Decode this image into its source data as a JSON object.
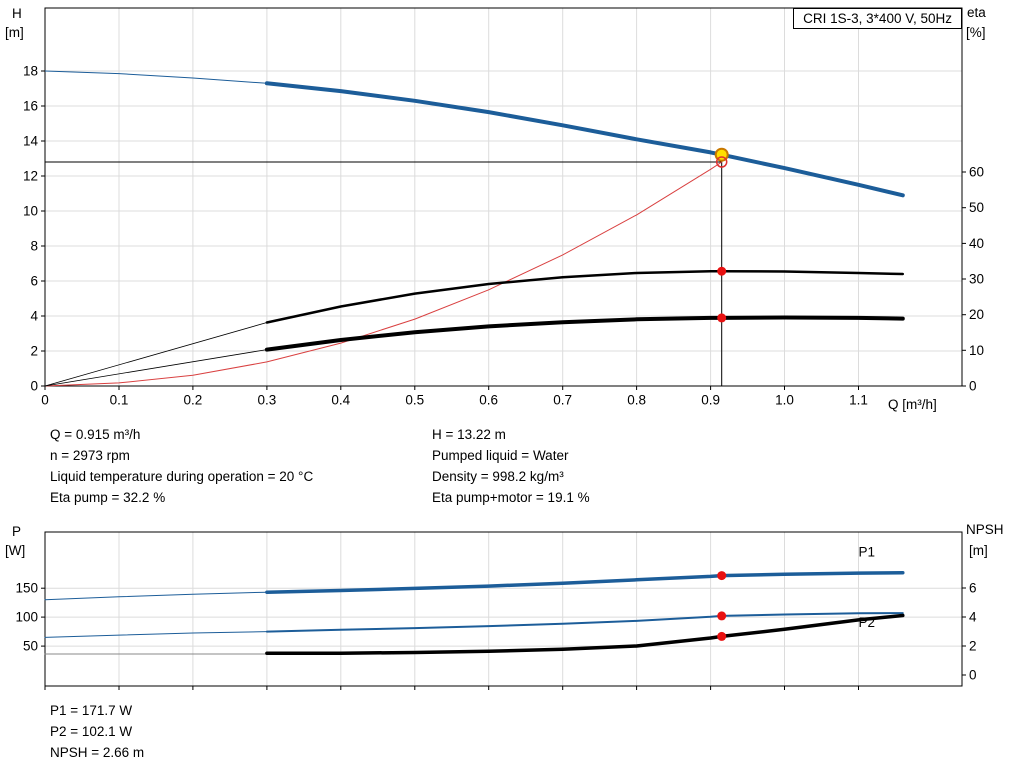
{
  "title_box": "CRI 1S-3, 3*400 V, 50Hz",
  "axis_labels": {
    "top_left_symbol": "H",
    "top_left_unit": "[m]",
    "top_right_symbol": "eta",
    "top_right_unit": "[%]",
    "x": "Q [m³/h]",
    "bottom_left_symbol": "P",
    "bottom_left_unit": "[W]",
    "bottom_right_symbol": "NPSH",
    "bottom_right_unit": "[m]"
  },
  "info": {
    "left": [
      "Q = 0.915 m³/h",
      "n = 2973 rpm",
      "Liquid temperature during operation = 20 °C",
      "Eta pump = 32.2 %"
    ],
    "right": [
      "H = 13.22 m",
      "Pumped liquid = Water",
      "Density = 998.2 kg/m³",
      "Eta pump+motor = 19.1 %"
    ]
  },
  "results": [
    "P1 = 171.7 W",
    "P2 = 102.1 W",
    "NPSH = 2.66 m"
  ],
  "colors": {
    "curve_blue": "#1c5d99",
    "curve_black": "#000000",
    "system_red": "#d94040",
    "dot_red": "#e81111",
    "duty_fill": "#ffdf00",
    "duty_stroke": "#c87800",
    "grid": "#dcdcdc"
  },
  "chart_data": [
    {
      "name": "hq-eta-chart",
      "type": "line",
      "title": "CRI 1S-3, 3*400 V, 50Hz",
      "xlabel": "Q [m³/h]",
      "ylabel_left": "H [m]",
      "ylabel_right": "eta [%]",
      "xlim": [
        0,
        1.24
      ],
      "show_x_labels": true,
      "x_ticks": [
        {
          "v": 0,
          "t": "0"
        },
        {
          "v": 0.1,
          "t": "0.1"
        },
        {
          "v": 0.2,
          "t": "0.2"
        },
        {
          "v": 0.3,
          "t": "0.3"
        },
        {
          "v": 0.4,
          "t": "0.4"
        },
        {
          "v": 0.5,
          "t": "0.5"
        },
        {
          "v": 0.6,
          "t": "0.6"
        },
        {
          "v": 0.7,
          "t": "0.7"
        },
        {
          "v": 0.8,
          "t": "0.8"
        },
        {
          "v": 0.9,
          "t": "0.9"
        },
        {
          "v": 1.0,
          "t": "1.0"
        },
        {
          "v": 1.1,
          "t": "1.1"
        }
      ],
      "ylim_left": [
        0,
        21.6
      ],
      "yticks_left": [
        {
          "v": 0,
          "t": "0"
        },
        {
          "v": 2,
          "t": "2"
        },
        {
          "v": 4,
          "t": "4"
        },
        {
          "v": 6,
          "t": "6"
        },
        {
          "v": 8,
          "t": "8"
        },
        {
          "v": 10,
          "t": "10"
        },
        {
          "v": 12,
          "t": "12"
        },
        {
          "v": 14,
          "t": "14"
        },
        {
          "v": 16,
          "t": "16"
        },
        {
          "v": 18,
          "t": "18"
        }
      ],
      "ylim_right": [
        0,
        106
      ],
      "yticks_right": [
        {
          "v": 0,
          "t": "0"
        },
        {
          "v": 10,
          "t": "10"
        },
        {
          "v": 20,
          "t": "20"
        },
        {
          "v": 30,
          "t": "30"
        },
        {
          "v": 40,
          "t": "40"
        },
        {
          "v": 50,
          "t": "50"
        },
        {
          "v": 60,
          "t": "60"
        }
      ],
      "crosshair": {
        "q": 0.915,
        "point_h": 13.22,
        "line_h": 12.8
      },
      "series": [
        {
          "name": "head-curve-extension",
          "axis": "left",
          "color": "#1c5d99",
          "width": 1,
          "points": [
            [
              0,
              18
            ],
            [
              0.1,
              17.85
            ],
            [
              0.2,
              17.6
            ],
            [
              0.3,
              17.3
            ]
          ]
        },
        {
          "name": "head-curve",
          "axis": "left",
          "color": "#1c5d99",
          "width": 4,
          "points": [
            [
              0.3,
              17.3
            ],
            [
              0.4,
              16.85
            ],
            [
              0.5,
              16.3
            ],
            [
              0.6,
              15.65
            ],
            [
              0.7,
              14.9
            ],
            [
              0.8,
              14.1
            ],
            [
              0.9,
              13.35
            ],
            [
              0.915,
              13.22
            ],
            [
              1.0,
              12.45
            ],
            [
              1.1,
              11.5
            ],
            [
              1.16,
              10.9
            ]
          ]
        },
        {
          "name": "system-curve",
          "axis": "left",
          "color": "#d94040",
          "width": 1,
          "points": [
            [
              0,
              0
            ],
            [
              0.1,
              0.18
            ],
            [
              0.2,
              0.61
            ],
            [
              0.3,
              1.38
            ],
            [
              0.4,
              2.45
            ],
            [
              0.5,
              3.82
            ],
            [
              0.6,
              5.5
            ],
            [
              0.7,
              7.49
            ],
            [
              0.8,
              9.78
            ],
            [
              0.9,
              12.38
            ],
            [
              0.915,
              12.8
            ]
          ]
        },
        {
          "name": "eta-pump-extension",
          "axis": "right",
          "color": "#000000",
          "width": 0.8,
          "points": [
            [
              0,
              0
            ],
            [
              0.3,
              17.8
            ]
          ]
        },
        {
          "name": "eta-pump-curve",
          "axis": "right",
          "color": "#000000",
          "width": 2.5,
          "points": [
            [
              0.3,
              17.8
            ],
            [
              0.4,
              22.3
            ],
            [
              0.5,
              25.9
            ],
            [
              0.6,
              28.6
            ],
            [
              0.7,
              30.5
            ],
            [
              0.8,
              31.7
            ],
            [
              0.9,
              32.2
            ],
            [
              0.915,
              32.2
            ],
            [
              1.0,
              32.1
            ],
            [
              1.1,
              31.7
            ],
            [
              1.16,
              31.4
            ]
          ]
        },
        {
          "name": "eta-pump-motor-extension",
          "axis": "right",
          "color": "#000000",
          "width": 0.8,
          "points": [
            [
              0,
              0
            ],
            [
              0.3,
              10.2
            ]
          ]
        },
        {
          "name": "eta-pump-motor-curve",
          "axis": "right",
          "color": "#000000",
          "width": 4,
          "points": [
            [
              0.3,
              10.2
            ],
            [
              0.4,
              12.9
            ],
            [
              0.5,
              15.1
            ],
            [
              0.6,
              16.7
            ],
            [
              0.7,
              17.9
            ],
            [
              0.8,
              18.7
            ],
            [
              0.9,
              19.1
            ],
            [
              0.915,
              19.1
            ],
            [
              1.0,
              19.2
            ],
            [
              1.1,
              19.1
            ],
            [
              1.16,
              18.9
            ]
          ]
        }
      ],
      "markers": [
        {
          "name": "duty-point",
          "q": 0.915,
          "val": 13.22,
          "axis": "left",
          "type": "duty",
          "fill": "#ffdf00",
          "stroke": "#c87800"
        },
        {
          "name": "requested-duty-point",
          "q": 0.915,
          "val": 12.8,
          "axis": "left",
          "type": "open",
          "stroke": "#e03030"
        },
        {
          "name": "eta-pump-point",
          "q": 0.915,
          "val": 32.2,
          "axis": "right",
          "type": "dot",
          "fill": "#e81111"
        },
        {
          "name": "eta-pump-motor-point",
          "q": 0.915,
          "val": 19.1,
          "axis": "right",
          "type": "dot",
          "fill": "#e81111"
        }
      ],
      "labels": []
    },
    {
      "name": "power-npsh-chart",
      "type": "line",
      "title": "",
      "xlabel": "",
      "ylabel_left": "P [W]",
      "ylabel_right": "NPSH [m]",
      "xlim": [
        0,
        1.24
      ],
      "show_x_labels": false,
      "x_ticks": [
        {
          "v": 0,
          "t": "0"
        },
        {
          "v": 0.1,
          "t": "0.1"
        },
        {
          "v": 0.2,
          "t": "0.2"
        },
        {
          "v": 0.3,
          "t": "0.3"
        },
        {
          "v": 0.4,
          "t": "0.4"
        },
        {
          "v": 0.5,
          "t": "0.5"
        },
        {
          "v": 0.6,
          "t": "0.6"
        },
        {
          "v": 0.7,
          "t": "0.7"
        },
        {
          "v": 0.8,
          "t": "0.8"
        },
        {
          "v": 0.9,
          "t": "0.9"
        },
        {
          "v": 1.0,
          "t": "1.0"
        },
        {
          "v": 1.1,
          "t": "1.1"
        }
      ],
      "ylim_left": [
        -19,
        247
      ],
      "yticks_left": [
        {
          "v": 50,
          "t": "50"
        },
        {
          "v": 100,
          "t": "100"
        },
        {
          "v": 150,
          "t": "150"
        }
      ],
      "ylim_right": [
        -0.76,
        9.86
      ],
      "yticks_right": [
        {
          "v": 0,
          "t": "0"
        },
        {
          "v": 2,
          "t": "2"
        },
        {
          "v": 4,
          "t": "4"
        },
        {
          "v": 6,
          "t": "6"
        }
      ],
      "crosshair": null,
      "series": [
        {
          "name": "p1-extension",
          "axis": "left",
          "color": "#1c5d99",
          "width": 1,
          "points": [
            [
              0,
              130
            ],
            [
              0.1,
              135
            ],
            [
              0.2,
              139.5
            ],
            [
              0.3,
              143
            ]
          ]
        },
        {
          "name": "p1-curve",
          "axis": "left",
          "color": "#1c5d99",
          "width": 3.5,
          "points": [
            [
              0.3,
              143
            ],
            [
              0.4,
              146
            ],
            [
              0.5,
              149.5
            ],
            [
              0.6,
              153.5
            ],
            [
              0.7,
              158.5
            ],
            [
              0.8,
              164.5
            ],
            [
              0.9,
              170.3
            ],
            [
              0.915,
              171.7
            ],
            [
              1.0,
              174
            ],
            [
              1.1,
              176
            ],
            [
              1.16,
              176.5
            ]
          ]
        },
        {
          "name": "p2-extension",
          "axis": "left",
          "color": "#1c5d99",
          "width": 1,
          "points": [
            [
              0,
              65
            ],
            [
              0.1,
              69
            ],
            [
              0.2,
              72.5
            ],
            [
              0.3,
              75
            ]
          ]
        },
        {
          "name": "p2-curve",
          "axis": "left",
          "color": "#1c5d99",
          "width": 2,
          "points": [
            [
              0.3,
              75
            ],
            [
              0.4,
              78
            ],
            [
              0.5,
              81
            ],
            [
              0.6,
              84.5
            ],
            [
              0.7,
              88.5
            ],
            [
              0.8,
              93.5
            ],
            [
              0.9,
              100.5
            ],
            [
              0.915,
              102.1
            ],
            [
              1.0,
              104.5
            ],
            [
              1.1,
              106.5
            ],
            [
              1.16,
              107
            ]
          ]
        },
        {
          "name": "npsh-extension",
          "axis": "right",
          "color": "#888888",
          "width": 1,
          "points": [
            [
              0,
              1.45
            ],
            [
              0.3,
              1.45
            ]
          ]
        },
        {
          "name": "npsh-curve",
          "axis": "right",
          "color": "#000000",
          "width": 3.5,
          "points": [
            [
              0.3,
              1.5
            ],
            [
              0.4,
              1.5
            ],
            [
              0.5,
              1.55
            ],
            [
              0.6,
              1.63
            ],
            [
              0.7,
              1.78
            ],
            [
              0.8,
              2.0
            ],
            [
              0.9,
              2.55
            ],
            [
              0.915,
              2.66
            ],
            [
              1.0,
              3.15
            ],
            [
              1.1,
              3.8
            ],
            [
              1.16,
              4.1
            ]
          ]
        }
      ],
      "markers": [
        {
          "name": "p1-point",
          "q": 0.915,
          "val": 171.7,
          "axis": "left",
          "type": "dot",
          "fill": "#e81111"
        },
        {
          "name": "p2-point",
          "q": 0.915,
          "val": 102.1,
          "axis": "left",
          "type": "dot",
          "fill": "#e81111"
        },
        {
          "name": "npsh-point",
          "q": 0.915,
          "val": 2.66,
          "axis": "right",
          "type": "dot",
          "fill": "#e81111"
        }
      ],
      "labels": [
        {
          "text": "P1",
          "q": 1.1,
          "val": 205,
          "axis": "left",
          "color": "#1c5d99"
        },
        {
          "text": "P2",
          "q": 1.1,
          "val": 83,
          "axis": "left",
          "color": "#1c5d99"
        }
      ]
    }
  ]
}
